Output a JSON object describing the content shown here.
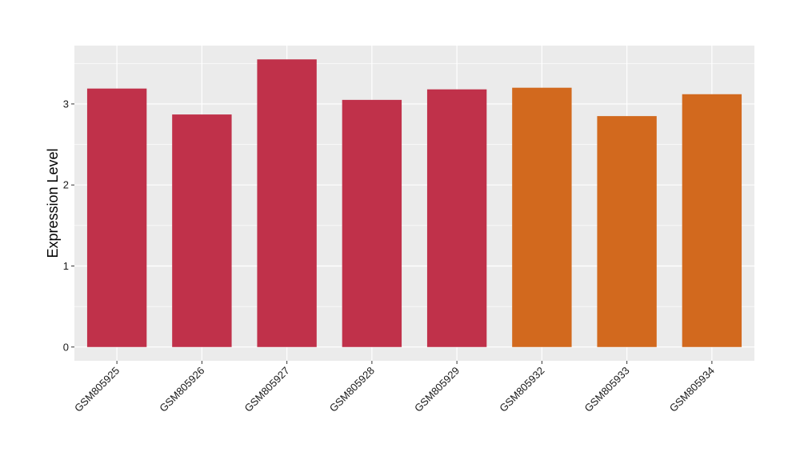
{
  "chart_data": {
    "type": "bar",
    "title": "",
    "xlabel": "",
    "ylabel": "Expression Level",
    "categories": [
      "GSM805925",
      "GSM805926",
      "GSM805927",
      "GSM805928",
      "GSM805929",
      "GSM805932",
      "GSM805933",
      "GSM805934"
    ],
    "values": [
      3.19,
      2.87,
      3.55,
      3.05,
      3.18,
      3.2,
      2.85,
      3.12
    ],
    "bar_colors": [
      "#c0314a",
      "#c0314a",
      "#c0314a",
      "#c0314a",
      "#c0314a",
      "#d2691e",
      "#d2691e",
      "#d2691e"
    ],
    "ylim": [
      -0.17,
      3.72
    ],
    "yticks": [
      "0",
      "1",
      "2",
      "3"
    ],
    "grid": true,
    "panel_background": "#ebebeb",
    "grid_color": "#ffffff"
  }
}
